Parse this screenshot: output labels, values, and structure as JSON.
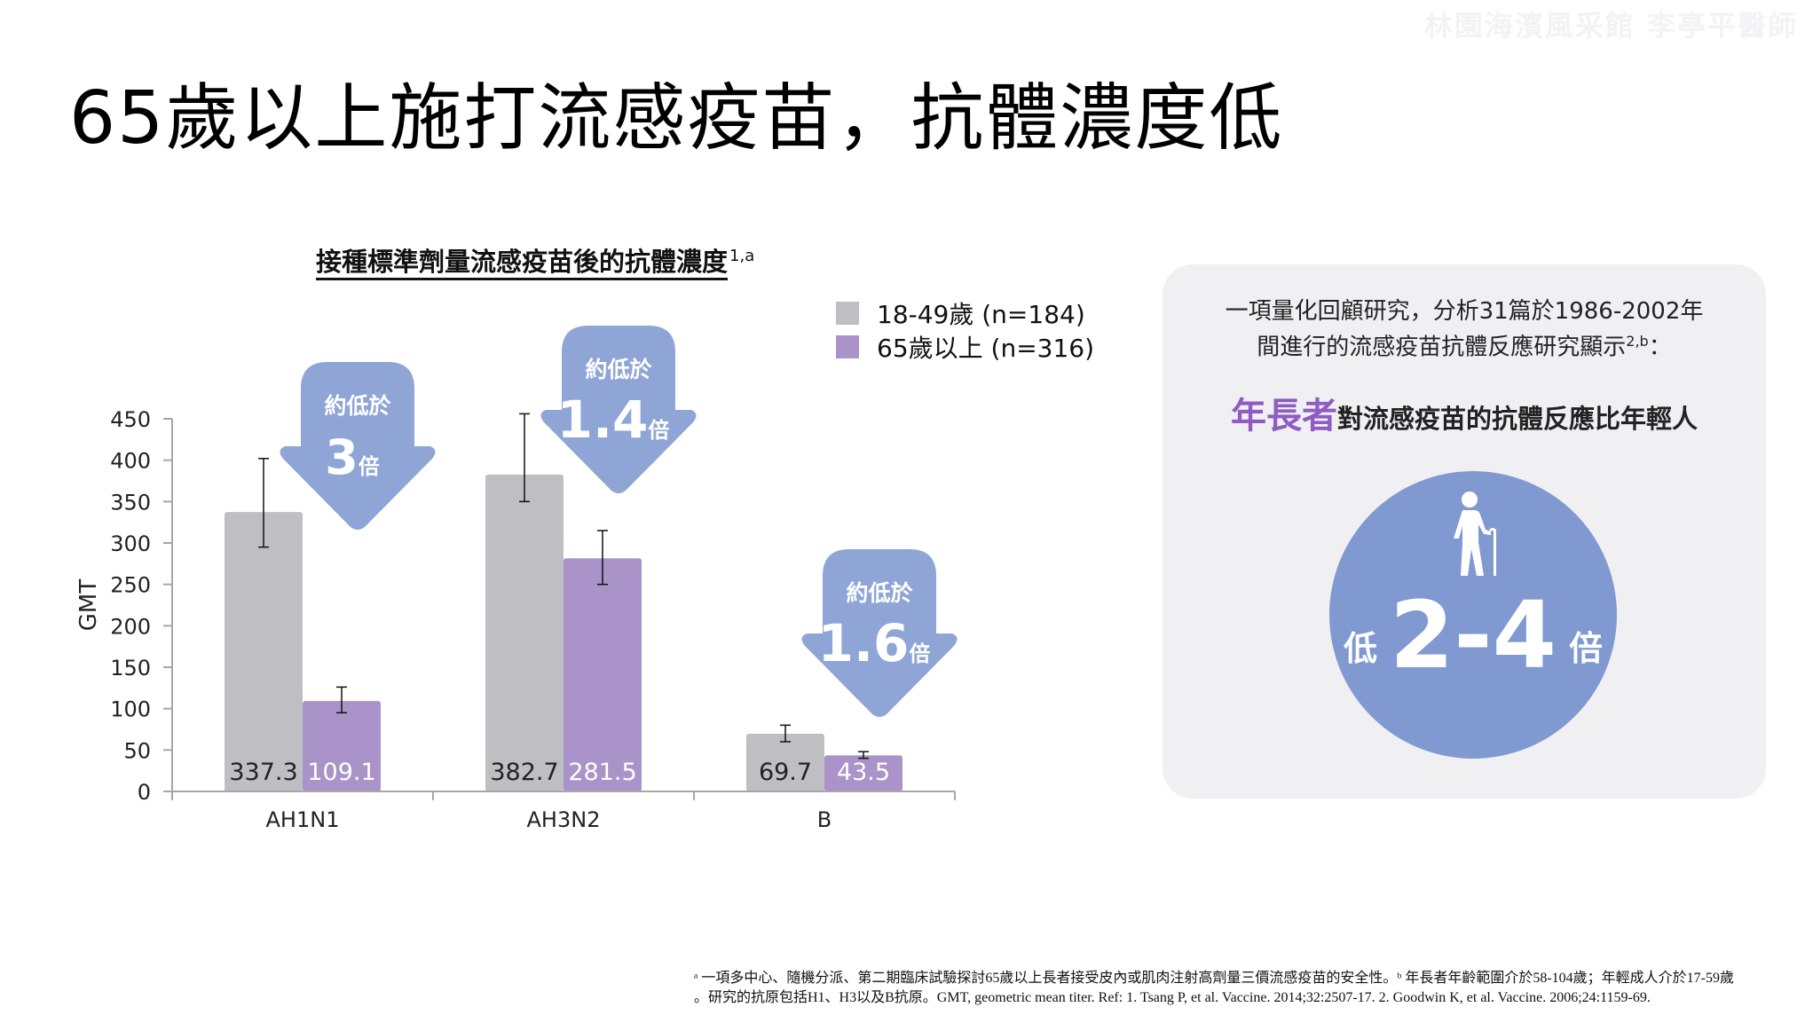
{
  "watermark": "林園海濱風采館 李亭平醫師",
  "slide_title": "65歲以上施打流感疫苗，抗體濃度低",
  "chart_data": {
    "type": "bar",
    "title": "接種標準劑量流感疫苗後的抗體濃度",
    "title_superscript": "1,a",
    "xlabel": "",
    "ylabel": "GMT",
    "ylim": [
      0,
      450
    ],
    "yticks": [
      0,
      50,
      100,
      150,
      200,
      250,
      300,
      350,
      400,
      450
    ],
    "categories": [
      "AH1N1",
      "AH3N2",
      "B"
    ],
    "legend_position": "top-right",
    "series": [
      {
        "name": "18-49歲 (n=184)",
        "color": "#bfbec2",
        "label_color": "#222222",
        "values": [
          337.3,
          382.7,
          69.7
        ],
        "value_labels": [
          "337.3",
          "382.7",
          "69.7"
        ],
        "error_low": [
          295,
          350,
          60
        ],
        "error_high": [
          402,
          456,
          80
        ]
      },
      {
        "name": "65歲以上 (n=316)",
        "color": "#a993c8",
        "label_color": "#ffffff",
        "values": [
          109.1,
          281.5,
          43.5
        ],
        "value_labels": [
          "109.1",
          "281.5",
          "43.5"
        ],
        "error_low": [
          95,
          250,
          40
        ],
        "error_high": [
          126,
          315,
          48
        ]
      }
    ],
    "annotations": [
      {
        "category": "AH1N1",
        "prefix": "約低於",
        "value": "3",
        "unit": "倍"
      },
      {
        "category": "AH3N2",
        "prefix": "約低於",
        "value": "1.4",
        "unit": "倍"
      },
      {
        "category": "B",
        "prefix": "約低於",
        "value": "1.6",
        "unit": "倍"
      }
    ],
    "annotation_color": "#8ea5d6"
  },
  "panel": {
    "line1": "一項量化回顧研究，分析31篇於1986-2002年",
    "line2": "間進行的流感疫苗抗體反應研究顯示",
    "line2_sup": "2,b",
    "line2_end": "：",
    "highlight_word": "年長者",
    "highlight_rest": "對流感疫苗的抗體反應比年輕人",
    "circle_icon": "elderly-person-with-cane-icon",
    "circle_prefix": "低",
    "circle_value": "2-4",
    "circle_suffix": "倍"
  },
  "footnotes": {
    "line1": "ᵃ 一項多中心、隨機分派、第二期臨床試驗探討65歲以上長者接受皮內或肌肉注射高劑量三價流感疫苗的安全性。ᵇ 年長者年齡範圍介於58-104歲；年輕成人介於17-59歲",
    "line2": "。研究的抗原包括H1、H3以及B抗原。GMT, geometric mean titer. Ref: 1. Tsang P, et al. Vaccine. 2014;32:2507-17. 2. Goodwin K, et al. Vaccine. 2006;24:1159-69."
  }
}
